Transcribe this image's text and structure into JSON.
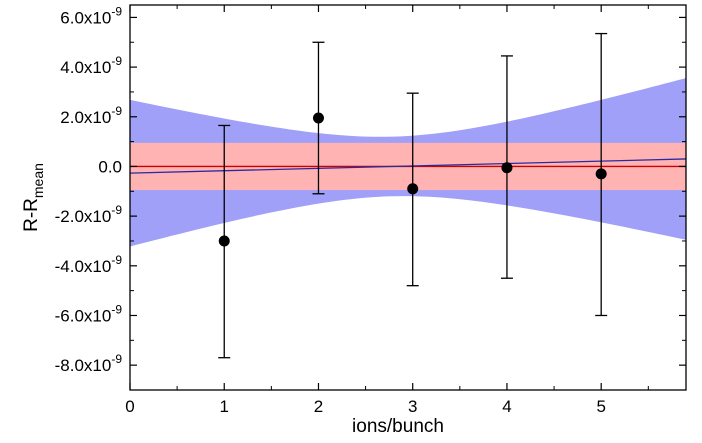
{
  "chart_data": {
    "type": "scatter",
    "xlabel": "ions/bunch",
    "ylabel": {
      "main": "R-R",
      "subscript": "mean"
    },
    "xlim": [
      0,
      5.9
    ],
    "ylim": [
      -9e-09,
      6.5e-09
    ],
    "x_ticks": [
      0,
      1,
      2,
      3,
      4,
      5
    ],
    "x_tick_labels": [
      "0",
      "1",
      "2",
      "3",
      "4",
      "5"
    ],
    "y_ticks": [
      6e-09,
      4e-09,
      2e-09,
      0,
      -2e-09,
      -4e-09,
      -6e-09,
      -8e-09
    ],
    "y_tick_labels": [
      {
        "mantissa": "6.0x10",
        "exp": "-9"
      },
      {
        "mantissa": "4.0x10",
        "exp": "-9"
      },
      {
        "mantissa": "2.0x10",
        "exp": "-9"
      },
      {
        "mantissa": "0.0",
        "exp": ""
      },
      {
        "mantissa": "-2.0x10",
        "exp": "-9"
      },
      {
        "mantissa": "-4.0x10",
        "exp": "-9"
      },
      {
        "mantissa": "-6.0x10",
        "exp": "-9"
      },
      {
        "mantissa": "-8.0x10",
        "exp": "-9"
      }
    ],
    "grid": false,
    "series": [
      {
        "points": [
          {
            "x": 1,
            "y": -3e-09,
            "err_low": -7.7e-09,
            "err_high": 1.65e-09
          },
          {
            "x": 2,
            "y": 1.95e-09,
            "err_low": -1.1e-09,
            "err_high": 5e-09
          },
          {
            "x": 3,
            "y": -9e-10,
            "err_low": -4.8e-09,
            "err_high": 2.95e-09
          },
          {
            "x": 4,
            "y": -5e-11,
            "err_low": -4.5e-09,
            "err_high": 4.45e-09
          },
          {
            "x": 5,
            "y": -3e-10,
            "err_low": -6e-09,
            "err_high": 5.35e-09
          }
        ],
        "color": "#000000"
      }
    ],
    "fit_line": {
      "slope": 9.7e-11,
      "intercept": -2.7e-10,
      "color": "#2a2aa0"
    },
    "mean_line": {
      "y": 0.0,
      "color": "#cc0000"
    },
    "mean_band": {
      "low": -9.5e-10,
      "high": 9.5e-10,
      "color": "#ffb3b3"
    },
    "confidence_band": {
      "center_x": 2.78,
      "min_halfwidth": 1.2e-09,
      "slope_halfwidth": 9.7e-10,
      "color": "#a0a0f8"
    }
  }
}
